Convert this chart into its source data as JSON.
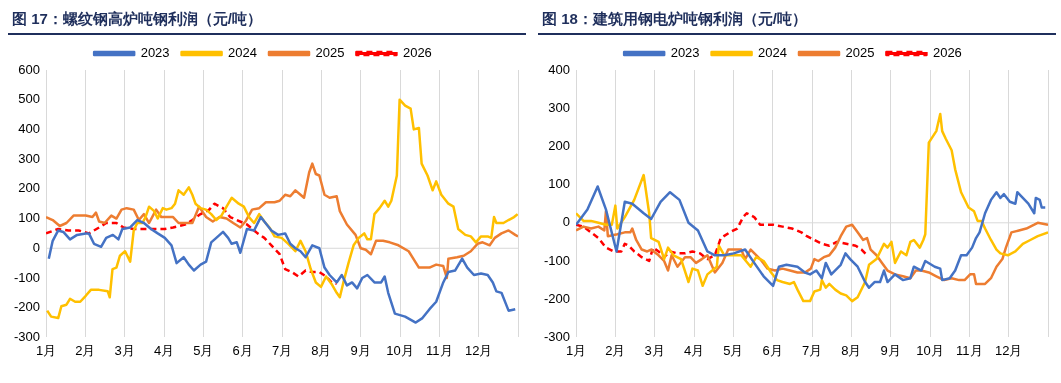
{
  "chart_data": [
    {
      "type": "line",
      "title": "图 17：螺纹钢高炉吨钢利润（元/吨）",
      "xlim": [
        1,
        13
      ],
      "xticks": [
        {
          "value": 1,
          "label": "1月"
        },
        {
          "value": 2,
          "label": "2月"
        },
        {
          "value": 3,
          "label": "3月"
        },
        {
          "value": 4,
          "label": "4月"
        },
        {
          "value": 5,
          "label": "5月"
        },
        {
          "value": 6,
          "label": "6月"
        },
        {
          "value": 7,
          "label": "7月"
        },
        {
          "value": 8,
          "label": "8月"
        },
        {
          "value": 9,
          "label": "9月"
        },
        {
          "value": 10,
          "label": "10月"
        },
        {
          "value": 11,
          "label": "11月"
        },
        {
          "value": 12,
          "label": "12月"
        },
        {
          "value": 13,
          "label": null
        }
      ],
      "ylim": [
        -300,
        600
      ],
      "yticks": [
        -300,
        -200,
        -100,
        0,
        100,
        200,
        300,
        400,
        500,
        600
      ],
      "grid": "x",
      "legend": "top",
      "marker": "none",
      "ref_lines": [
        {
          "axis": "y",
          "value": 0,
          "color": "#d9d9d9"
        }
      ],
      "series": [
        {
          "name": "2023",
          "color": "#4472c4",
          "line_style": "solid",
          "x": [
            1.07,
            1.17,
            1.31,
            1.44,
            1.61,
            1.79,
            2.01,
            2.09,
            2.22,
            2.4,
            2.53,
            2.7,
            2.84,
            2.94,
            3.14,
            3.32,
            3.49,
            3.67,
            3.84,
            4.02,
            4.19,
            4.32,
            4.5,
            4.63,
            4.76,
            4.93,
            5.07,
            5.2,
            5.33,
            5.5,
            5.63,
            5.72,
            5.85,
            5.94,
            6.11,
            6.29,
            6.46,
            6.55,
            6.73,
            6.9,
            7.08,
            7.21,
            7.34,
            7.47,
            7.6,
            7.77,
            7.95,
            8.08,
            8.21,
            8.39,
            8.52,
            8.65,
            8.78,
            8.91,
            9.04,
            9.17,
            9.35,
            9.52,
            9.61,
            9.7,
            9.87,
            10.13,
            10.4,
            10.57,
            10.75,
            10.92,
            11.1,
            11.23,
            11.4,
            11.58,
            11.71,
            11.88,
            12.06,
            12.23,
            12.36,
            12.45,
            12.58,
            12.76,
            12.93
          ],
          "values": [
            -35,
            25,
            60,
            55,
            30,
            45,
            50,
            50,
            15,
            5,
            35,
            45,
            30,
            65,
            70,
            95,
            85,
            65,
            50,
            35,
            10,
            -50,
            -30,
            -55,
            -75,
            -55,
            -45,
            20,
            35,
            55,
            35,
            15,
            20,
            -15,
            65,
            60,
            105,
            90,
            60,
            45,
            50,
            15,
            0,
            -10,
            -30,
            10,
            0,
            -65,
            -90,
            -115,
            -90,
            -125,
            -115,
            -135,
            -100,
            -90,
            -115,
            -115,
            -95,
            -150,
            -220,
            -230,
            -250,
            -235,
            -205,
            -180,
            -115,
            -80,
            -75,
            -35,
            -65,
            -90,
            -85,
            -90,
            -115,
            -145,
            -150,
            -210,
            -205
          ]
        },
        {
          "name": "2024",
          "color": "#ffc000",
          "line_style": "solid",
          "x": [
            1.03,
            1.13,
            1.31,
            1.39,
            1.52,
            1.61,
            1.74,
            1.87,
            2.01,
            2.14,
            2.35,
            2.57,
            2.62,
            2.69,
            2.79,
            2.88,
            3.01,
            3.14,
            3.23,
            3.32,
            3.45,
            3.53,
            3.62,
            3.75,
            3.84,
            3.97,
            4.06,
            4.19,
            4.28,
            4.37,
            4.5,
            4.63,
            4.72,
            4.8,
            4.93,
            5.07,
            5.2,
            5.33,
            5.46,
            5.59,
            5.72,
            5.9,
            6.03,
            6.16,
            6.29,
            6.42,
            6.55,
            6.68,
            6.81,
            6.99,
            7.16,
            7.34,
            7.47,
            7.6,
            7.73,
            7.86,
            7.99,
            8.12,
            8.26,
            8.39,
            8.47,
            8.56,
            8.69,
            8.82,
            8.95,
            9.09,
            9.17,
            9.26,
            9.35,
            9.48,
            9.61,
            9.7,
            9.78,
            9.92,
            9.99,
            10.13,
            10.27,
            10.35,
            10.48,
            10.55,
            10.7,
            10.83,
            10.92,
            11.05,
            11.23,
            11.36,
            11.48,
            11.66,
            11.8,
            11.93,
            12.06,
            12.23,
            12.32,
            12.39,
            12.45,
            12.63,
            12.76,
            12.9,
            12.99
          ],
          "values": [
            -210,
            -230,
            -235,
            -195,
            -190,
            -170,
            -180,
            -180,
            -160,
            -140,
            -140,
            -145,
            -165,
            -70,
            -65,
            -25,
            -10,
            -45,
            60,
            85,
            85,
            105,
            140,
            125,
            100,
            135,
            130,
            135,
            150,
            195,
            180,
            205,
            180,
            150,
            135,
            130,
            115,
            95,
            110,
            140,
            170,
            150,
            140,
            105,
            85,
            115,
            90,
            70,
            40,
            35,
            15,
            -10,
            25,
            -10,
            -70,
            -115,
            -130,
            -95,
            -120,
            -150,
            -165,
            -115,
            -50,
            10,
            35,
            50,
            30,
            30,
            115,
            135,
            160,
            140,
            160,
            245,
            500,
            480,
            470,
            400,
            405,
            285,
            245,
            195,
            225,
            180,
            150,
            140,
            65,
            45,
            40,
            20,
            40,
            40,
            35,
            105,
            85,
            85,
            95,
            105,
            115
          ]
        },
        {
          "name": "2025",
          "color": "#ed7d31",
          "line_style": "solid",
          "x": [
            1.0,
            1.17,
            1.35,
            1.52,
            1.7,
            2.01,
            2.18,
            2.27,
            2.35,
            2.49,
            2.66,
            2.79,
            2.92,
            3.05,
            3.23,
            3.36,
            3.49,
            3.62,
            3.8,
            3.93,
            4.06,
            4.23,
            4.37,
            4.54,
            4.72,
            4.89,
            5.07,
            5.24,
            5.41,
            5.59,
            5.76,
            5.94,
            6.07,
            6.24,
            6.42,
            6.59,
            6.81,
            6.94,
            7.08,
            7.21,
            7.34,
            7.47,
            7.56,
            7.69,
            7.77,
            7.86,
            7.95,
            8.08,
            8.21,
            8.39,
            8.47,
            8.65,
            8.87,
            9.0,
            9.13,
            9.26,
            9.39,
            9.57,
            9.74,
            9.96,
            10.22,
            10.48,
            10.75,
            10.92,
            11.1,
            11.19,
            11.23,
            11.45,
            11.62,
            11.8,
            11.97,
            12.1,
            12.28,
            12.41,
            12.58,
            12.76,
            12.93,
            13.0
          ],
          "values": [
            105,
            95,
            75,
            85,
            110,
            110,
            105,
            120,
            90,
            85,
            110,
            100,
            130,
            135,
            130,
            95,
            115,
            85,
            130,
            105,
            105,
            105,
            85,
            85,
            85,
            140,
            105,
            90,
            105,
            100,
            85,
            70,
            90,
            130,
            135,
            155,
            155,
            160,
            180,
            175,
            195,
            180,
            170,
            255,
            285,
            250,
            245,
            180,
            170,
            175,
            125,
            80,
            45,
            0,
            -5,
            -20,
            25,
            25,
            20,
            10,
            -10,
            -65,
            -65,
            -55,
            -60,
            -100,
            -35,
            -30,
            -25,
            -10,
            15,
            20,
            10,
            35,
            50,
            60,
            45,
            40
          ]
        },
        {
          "name": "2026",
          "color": "#ff0000",
          "line_style": "dashed",
          "x": [
            1.0,
            1.31,
            1.57,
            1.83,
            2.09,
            2.35,
            2.53,
            2.79,
            2.97,
            3.23,
            3.49,
            3.75,
            4.02,
            4.23,
            4.54,
            4.72,
            4.93,
            5.15,
            5.28,
            5.5,
            5.68,
            5.85,
            6.11,
            6.38,
            6.55,
            6.73,
            6.94,
            7.08,
            7.25,
            7.42,
            7.6,
            7.77,
            7.95,
            8.12,
            8.26,
            8.39
          ],
          "values": [
            50,
            65,
            60,
            60,
            50,
            70,
            85,
            85,
            70,
            65,
            65,
            65,
            65,
            70,
            80,
            95,
            115,
            130,
            150,
            135,
            105,
            95,
            80,
            50,
            35,
            10,
            -20,
            -70,
            -80,
            -95,
            -75,
            -80,
            -80,
            -95,
            -115,
            -120
          ]
        }
      ]
    },
    {
      "type": "line",
      "title": "图 18：建筑用钢电炉吨钢利润（元/吨）",
      "xlim": [
        1,
        13
      ],
      "xticks": [
        {
          "value": 1,
          "label": "1月"
        },
        {
          "value": 2,
          "label": "2月"
        },
        {
          "value": 3,
          "label": "3月"
        },
        {
          "value": 4,
          "label": "4月"
        },
        {
          "value": 5,
          "label": "5月"
        },
        {
          "value": 6,
          "label": "6月"
        },
        {
          "value": 7,
          "label": "7月"
        },
        {
          "value": 8,
          "label": "8月"
        },
        {
          "value": 9,
          "label": "9月"
        },
        {
          "value": 10,
          "label": "10月"
        },
        {
          "value": 11,
          "label": "11月"
        },
        {
          "value": 12,
          "label": "12月"
        },
        {
          "value": 13,
          "label": null
        }
      ],
      "ylim": [
        -300,
        400
      ],
      "yticks": [
        -300,
        -200,
        -100,
        0,
        100,
        200,
        300,
        400
      ],
      "grid": "x",
      "legend": "top",
      "marker": "none",
      "ref_lines": [
        {
          "axis": "y",
          "value": 0,
          "color": "#d9d9d9"
        }
      ],
      "series": [
        {
          "name": "2023",
          "color": "#4472c4",
          "line_style": "solid",
          "x": [
            1.0,
            1.29,
            1.55,
            1.76,
            2.03,
            2.24,
            2.43,
            2.72,
            2.91,
            3.15,
            3.39,
            3.63,
            3.86,
            4.1,
            4.34,
            4.53,
            4.77,
            5.01,
            5.3,
            5.53,
            5.77,
            6.01,
            6.16,
            6.35,
            6.63,
            6.82,
            6.95,
            7.11,
            7.25,
            7.35,
            7.49,
            7.73,
            7.85,
            7.97,
            8.16,
            8.35,
            8.45,
            8.59,
            8.73,
            8.83,
            8.92,
            9.11,
            9.31,
            9.5,
            9.59,
            9.78,
            9.88,
            10.12,
            10.26,
            10.31,
            10.5,
            10.64,
            10.79,
            10.93,
            11.07,
            11.17,
            11.26,
            11.4,
            11.55,
            11.69,
            11.79,
            11.88,
            12.03,
            12.17,
            12.22,
            12.36,
            12.5,
            12.65,
            12.69,
            12.79,
            12.84,
            12.93
          ],
          "values": [
            -5,
            35,
            95,
            35,
            -75,
            55,
            50,
            25,
            10,
            55,
            80,
            60,
            0,
            -20,
            -75,
            -85,
            -85,
            -80,
            -70,
            -105,
            -140,
            -165,
            -115,
            -110,
            -115,
            -130,
            -135,
            -125,
            -145,
            -105,
            -135,
            -110,
            -80,
            -95,
            -115,
            -155,
            -170,
            -155,
            -155,
            -125,
            -155,
            -135,
            -150,
            -145,
            -115,
            -125,
            -100,
            -115,
            -120,
            -150,
            -145,
            -125,
            -85,
            -85,
            -65,
            -40,
            -25,
            25,
            60,
            80,
            65,
            75,
            55,
            50,
            80,
            65,
            50,
            25,
            65,
            60,
            40,
            40
          ]
        },
        {
          "name": "2024",
          "color": "#ffc000",
          "line_style": "solid",
          "x": [
            1.0,
            1.19,
            1.38,
            1.57,
            1.76,
            1.91,
            2.0,
            2.05,
            2.24,
            2.48,
            2.72,
            2.86,
            2.91,
            3.1,
            3.24,
            3.34,
            3.48,
            3.67,
            3.86,
            3.96,
            4.1,
            4.22,
            4.34,
            4.58,
            4.63,
            4.77,
            5.01,
            5.2,
            5.44,
            5.58,
            5.77,
            5.96,
            6.11,
            6.25,
            6.44,
            6.54,
            6.63,
            6.78,
            6.95,
            7.06,
            7.21,
            7.25,
            7.35,
            7.44,
            7.59,
            7.73,
            7.87,
            8.02,
            8.16,
            8.35,
            8.45,
            8.64,
            8.83,
            8.92,
            9.02,
            9.11,
            9.26,
            9.4,
            9.5,
            9.59,
            9.74,
            9.83,
            9.88,
            9.97,
            10.16,
            10.26,
            10.31,
            10.4,
            10.55,
            10.64,
            10.79,
            10.98,
            11.12,
            11.21,
            11.31,
            11.4,
            11.55,
            11.69,
            11.79,
            11.98,
            12.17,
            12.36,
            12.55,
            12.74,
            13.0
          ],
          "values": [
            25,
            5,
            5,
            0,
            -5,
            -5,
            45,
            -15,
            15,
            60,
            125,
            25,
            -40,
            -50,
            -95,
            -65,
            -85,
            -95,
            -155,
            -120,
            -125,
            -165,
            -135,
            -115,
            -60,
            -85,
            -85,
            -85,
            -115,
            -90,
            -100,
            -130,
            -150,
            -155,
            -160,
            -155,
            -175,
            -205,
            -205,
            -180,
            -175,
            -150,
            -170,
            -160,
            -175,
            -185,
            -190,
            -205,
            -195,
            -155,
            -110,
            -95,
            -55,
            -65,
            -50,
            -105,
            -75,
            -85,
            -50,
            -45,
            -65,
            -45,
            -30,
            210,
            240,
            285,
            240,
            220,
            190,
            140,
            80,
            40,
            30,
            5,
            5,
            -15,
            -45,
            -70,
            -80,
            -85,
            -75,
            -55,
            -45,
            -35,
            -25
          ]
        },
        {
          "name": "2025",
          "color": "#ed7d31",
          "line_style": "solid",
          "x": [
            1.0,
            1.19,
            1.38,
            1.57,
            1.72,
            1.76,
            1.81,
            2.05,
            2.24,
            2.38,
            2.43,
            2.53,
            2.67,
            2.81,
            2.91,
            3.1,
            3.24,
            3.34,
            3.43,
            3.58,
            3.77,
            3.91,
            4.05,
            4.2,
            4.34,
            4.53,
            4.72,
            4.87,
            5.01,
            5.2,
            5.3,
            5.44,
            5.68,
            5.87,
            6.06,
            6.25,
            6.44,
            6.63,
            6.82,
            6.97,
            7.06,
            7.16,
            7.3,
            7.44,
            7.59,
            7.73,
            7.87,
            8.02,
            8.16,
            8.3,
            8.4,
            8.49,
            8.64,
            8.78,
            8.92,
            9.11,
            9.31,
            9.5,
            9.64,
            9.78,
            9.97,
            10.16,
            10.36,
            10.55,
            10.74,
            10.88,
            11.02,
            11.12,
            11.17,
            11.4,
            11.55,
            11.69,
            11.84,
            11.93,
            12.07,
            12.26,
            12.45,
            12.65,
            12.74,
            13.0
          ],
          "values": [
            -20,
            -10,
            -15,
            -10,
            -20,
            30,
            -35,
            -30,
            -25,
            -25,
            -15,
            -45,
            -70,
            -75,
            -70,
            -85,
            -100,
            -125,
            -85,
            -115,
            -90,
            -90,
            -105,
            -95,
            -85,
            -130,
            -105,
            -70,
            -70,
            -70,
            -95,
            -70,
            -95,
            -120,
            -125,
            -120,
            -125,
            -130,
            -130,
            -120,
            -95,
            -100,
            -90,
            -85,
            -65,
            -35,
            -10,
            -5,
            -25,
            -45,
            -40,
            -70,
            -85,
            -105,
            -125,
            -135,
            -140,
            -145,
            -125,
            -125,
            -130,
            -140,
            -150,
            -145,
            -150,
            -150,
            -135,
            -135,
            -160,
            -160,
            -145,
            -115,
            -95,
            -65,
            -25,
            -20,
            -15,
            -5,
            0,
            -5
          ]
        },
        {
          "name": "2026",
          "color": "#ff0000",
          "line_style": "dashed",
          "x": [
            1.0,
            1.19,
            1.38,
            1.57,
            1.76,
            1.96,
            2.15,
            2.24,
            2.34,
            2.48,
            2.67,
            2.86,
            2.96,
            3.1,
            3.24,
            3.39,
            3.58,
            3.77,
            3.96,
            4.15,
            4.34,
            4.53,
            4.68,
            4.91,
            5.1,
            5.25,
            5.34,
            5.53,
            5.68,
            5.87,
            6.01,
            6.25,
            6.49,
            6.73,
            6.87,
            7.06,
            7.25,
            7.44,
            7.63,
            7.87,
            8.11,
            8.26,
            8.4
          ],
          "values": [
            -5,
            -10,
            -25,
            -40,
            -65,
            -75,
            -75,
            -55,
            -60,
            -75,
            -90,
            -100,
            -65,
            -75,
            -90,
            -75,
            -80,
            -80,
            -75,
            -80,
            -95,
            -85,
            -40,
            -25,
            -15,
            15,
            25,
            15,
            -5,
            -5,
            -5,
            -10,
            -15,
            -25,
            -35,
            -45,
            -55,
            -60,
            -50,
            -55,
            -60,
            -70,
            -85
          ]
        }
      ]
    }
  ]
}
